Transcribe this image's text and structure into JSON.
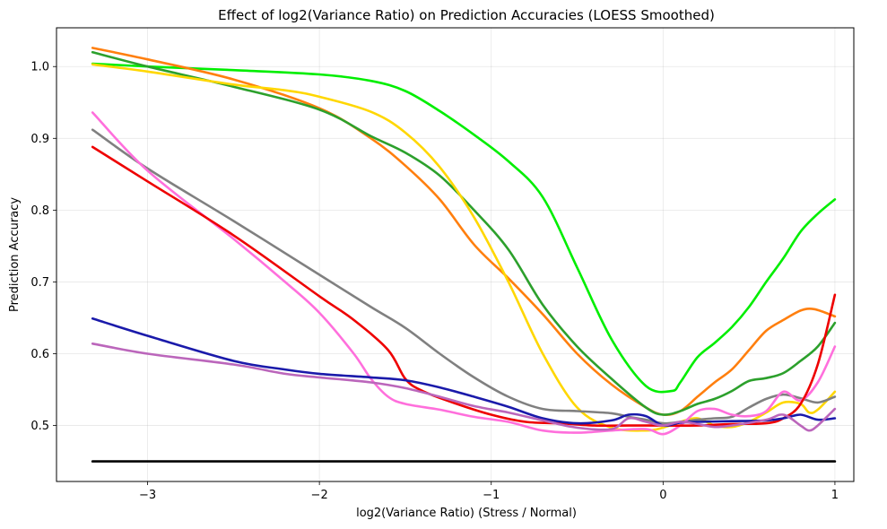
{
  "chart_data": {
    "type": "line",
    "title": "Effect of log2(Variance Ratio) on Prediction Accuracies (LOESS Smoothed)",
    "xlabel": "log2(Variance Ratio) (Stress / Normal)",
    "ylabel": "Prediction Accuracy",
    "xlim": [
      -3.53,
      1.11
    ],
    "ylim": [
      0.422,
      1.054
    ],
    "xticks": [
      -3,
      -2,
      -1,
      0,
      1
    ],
    "xtick_labels": [
      "−3",
      "−2",
      "−1",
      "0",
      "1"
    ],
    "yticks": [
      0.5,
      0.6,
      0.7,
      0.8,
      0.9,
      1.0
    ],
    "ytick_labels": [
      "0.5",
      "0.6",
      "0.7",
      "0.8",
      "0.9",
      "1.0"
    ],
    "grid": true,
    "series": [
      {
        "color": "#00ee00",
        "points": [
          [
            -3.32,
            1.004
          ],
          [
            -3.0,
            1.0
          ],
          [
            -2.5,
            0.995
          ],
          [
            -2.0,
            0.989
          ],
          [
            -1.7,
            0.98
          ],
          [
            -1.5,
            0.966
          ],
          [
            -1.3,
            0.938
          ],
          [
            -1.1,
            0.905
          ],
          [
            -0.9,
            0.868
          ],
          [
            -0.7,
            0.818
          ],
          [
            -0.5,
            0.72
          ],
          [
            -0.3,
            0.62
          ],
          [
            -0.1,
            0.555
          ],
          [
            0.05,
            0.548
          ],
          [
            0.1,
            0.56
          ],
          [
            0.2,
            0.595
          ],
          [
            0.3,
            0.615
          ],
          [
            0.4,
            0.637
          ],
          [
            0.5,
            0.665
          ],
          [
            0.6,
            0.7
          ],
          [
            0.7,
            0.733
          ],
          [
            0.8,
            0.77
          ],
          [
            0.9,
            0.795
          ],
          [
            1.0,
            0.815
          ]
        ]
      },
      {
        "color": "#ff7f0e",
        "points": [
          [
            -3.32,
            1.026
          ],
          [
            -3.0,
            1.01
          ],
          [
            -2.5,
            0.982
          ],
          [
            -2.0,
            0.942
          ],
          [
            -1.7,
            0.9
          ],
          [
            -1.5,
            0.862
          ],
          [
            -1.3,
            0.815
          ],
          [
            -1.1,
            0.752
          ],
          [
            -0.9,
            0.705
          ],
          [
            -0.7,
            0.655
          ],
          [
            -0.5,
            0.6
          ],
          [
            -0.3,
            0.557
          ],
          [
            -0.1,
            0.525
          ],
          [
            0.0,
            0.515
          ],
          [
            0.1,
            0.52
          ],
          [
            0.2,
            0.54
          ],
          [
            0.3,
            0.56
          ],
          [
            0.4,
            0.578
          ],
          [
            0.5,
            0.605
          ],
          [
            0.6,
            0.632
          ],
          [
            0.7,
            0.647
          ],
          [
            0.8,
            0.66
          ],
          [
            0.88,
            0.662
          ],
          [
            1.0,
            0.652
          ]
        ]
      },
      {
        "color": "#2ca02c",
        "points": [
          [
            -3.32,
            1.02
          ],
          [
            -3.0,
            1.0
          ],
          [
            -2.5,
            0.972
          ],
          [
            -2.0,
            0.94
          ],
          [
            -1.7,
            0.903
          ],
          [
            -1.5,
            0.88
          ],
          [
            -1.3,
            0.848
          ],
          [
            -1.1,
            0.8
          ],
          [
            -0.9,
            0.745
          ],
          [
            -0.7,
            0.668
          ],
          [
            -0.5,
            0.61
          ],
          [
            -0.3,
            0.565
          ],
          [
            -0.1,
            0.525
          ],
          [
            0.0,
            0.515
          ],
          [
            0.1,
            0.52
          ],
          [
            0.2,
            0.53
          ],
          [
            0.3,
            0.537
          ],
          [
            0.4,
            0.548
          ],
          [
            0.5,
            0.562
          ],
          [
            0.6,
            0.566
          ],
          [
            0.7,
            0.573
          ],
          [
            0.8,
            0.59
          ],
          [
            0.9,
            0.61
          ],
          [
            1.0,
            0.643
          ]
        ]
      },
      {
        "color": "#ffd700",
        "points": [
          [
            -3.32,
            1.003
          ],
          [
            -3.0,
            0.993
          ],
          [
            -2.5,
            0.975
          ],
          [
            -2.2,
            0.967
          ],
          [
            -2.0,
            0.958
          ],
          [
            -1.7,
            0.937
          ],
          [
            -1.5,
            0.908
          ],
          [
            -1.3,
            0.86
          ],
          [
            -1.1,
            0.79
          ],
          [
            -0.9,
            0.7
          ],
          [
            -0.7,
            0.6
          ],
          [
            -0.5,
            0.525
          ],
          [
            -0.3,
            0.497
          ],
          [
            -0.1,
            0.493
          ],
          [
            0.0,
            0.497
          ],
          [
            0.1,
            0.505
          ],
          [
            0.2,
            0.51
          ],
          [
            0.3,
            0.5
          ],
          [
            0.4,
            0.498
          ],
          [
            0.5,
            0.505
          ],
          [
            0.6,
            0.518
          ],
          [
            0.7,
            0.532
          ],
          [
            0.8,
            0.53
          ],
          [
            0.85,
            0.518
          ],
          [
            0.9,
            0.522
          ],
          [
            1.0,
            0.547
          ]
        ]
      },
      {
        "color": "#808080",
        "points": [
          [
            -3.32,
            0.912
          ],
          [
            -3.0,
            0.858
          ],
          [
            -2.5,
            0.785
          ],
          [
            -2.0,
            0.71
          ],
          [
            -1.7,
            0.665
          ],
          [
            -1.5,
            0.636
          ],
          [
            -1.3,
            0.6
          ],
          [
            -1.1,
            0.567
          ],
          [
            -0.9,
            0.54
          ],
          [
            -0.7,
            0.523
          ],
          [
            -0.5,
            0.52
          ],
          [
            -0.3,
            0.517
          ],
          [
            -0.2,
            0.512
          ],
          [
            -0.1,
            0.508
          ],
          [
            0.0,
            0.503
          ],
          [
            0.1,
            0.505
          ],
          [
            0.2,
            0.508
          ],
          [
            0.3,
            0.51
          ],
          [
            0.4,
            0.512
          ],
          [
            0.5,
            0.525
          ],
          [
            0.6,
            0.537
          ],
          [
            0.7,
            0.543
          ],
          [
            0.8,
            0.538
          ],
          [
            0.9,
            0.532
          ],
          [
            1.0,
            0.54
          ]
        ]
      },
      {
        "color": "#ff6fdc",
        "points": [
          [
            -3.32,
            0.936
          ],
          [
            -3.0,
            0.855
          ],
          [
            -2.5,
            0.76
          ],
          [
            -2.2,
            0.7
          ],
          [
            -2.0,
            0.657
          ],
          [
            -1.8,
            0.6
          ],
          [
            -1.7,
            0.565
          ],
          [
            -1.6,
            0.54
          ],
          [
            -1.5,
            0.53
          ],
          [
            -1.3,
            0.522
          ],
          [
            -1.1,
            0.512
          ],
          [
            -0.9,
            0.505
          ],
          [
            -0.7,
            0.493
          ],
          [
            -0.5,
            0.49
          ],
          [
            -0.3,
            0.493
          ],
          [
            -0.1,
            0.495
          ],
          [
            0.0,
            0.488
          ],
          [
            0.1,
            0.5
          ],
          [
            0.2,
            0.52
          ],
          [
            0.3,
            0.523
          ],
          [
            0.4,
            0.515
          ],
          [
            0.5,
            0.513
          ],
          [
            0.6,
            0.52
          ],
          [
            0.7,
            0.547
          ],
          [
            0.8,
            0.535
          ],
          [
            0.9,
            0.56
          ],
          [
            1.0,
            0.61
          ]
        ]
      },
      {
        "color": "#ee0000",
        "points": [
          [
            -3.32,
            0.888
          ],
          [
            -3.0,
            0.84
          ],
          [
            -2.5,
            0.765
          ],
          [
            -2.0,
            0.68
          ],
          [
            -1.8,
            0.647
          ],
          [
            -1.6,
            0.605
          ],
          [
            -1.5,
            0.565
          ],
          [
            -1.4,
            0.548
          ],
          [
            -1.2,
            0.53
          ],
          [
            -1.0,
            0.515
          ],
          [
            -0.8,
            0.505
          ],
          [
            -0.6,
            0.503
          ],
          [
            -0.4,
            0.5
          ],
          [
            -0.2,
            0.5
          ],
          [
            0.0,
            0.5
          ],
          [
            0.2,
            0.5
          ],
          [
            0.4,
            0.502
          ],
          [
            0.6,
            0.503
          ],
          [
            0.7,
            0.51
          ],
          [
            0.8,
            0.53
          ],
          [
            0.9,
            0.585
          ],
          [
            1.0,
            0.682
          ]
        ]
      },
      {
        "color": "#1a1aaa",
        "points": [
          [
            -3.32,
            0.649
          ],
          [
            -3.0,
            0.625
          ],
          [
            -2.5,
            0.59
          ],
          [
            -2.2,
            0.578
          ],
          [
            -2.0,
            0.572
          ],
          [
            -1.7,
            0.567
          ],
          [
            -1.5,
            0.563
          ],
          [
            -1.3,
            0.553
          ],
          [
            -1.1,
            0.54
          ],
          [
            -0.9,
            0.526
          ],
          [
            -0.7,
            0.51
          ],
          [
            -0.5,
            0.503
          ],
          [
            -0.3,
            0.507
          ],
          [
            -0.2,
            0.515
          ],
          [
            -0.1,
            0.513
          ],
          [
            0.0,
            0.5
          ],
          [
            0.1,
            0.504
          ],
          [
            0.2,
            0.505
          ],
          [
            0.4,
            0.506
          ],
          [
            0.6,
            0.507
          ],
          [
            0.7,
            0.51
          ],
          [
            0.8,
            0.515
          ],
          [
            0.9,
            0.508
          ],
          [
            1.0,
            0.51
          ]
        ]
      },
      {
        "color": "#bb66bb",
        "points": [
          [
            -3.32,
            0.614
          ],
          [
            -3.0,
            0.6
          ],
          [
            -2.5,
            0.585
          ],
          [
            -2.2,
            0.572
          ],
          [
            -2.0,
            0.567
          ],
          [
            -1.7,
            0.56
          ],
          [
            -1.5,
            0.552
          ],
          [
            -1.3,
            0.54
          ],
          [
            -1.1,
            0.527
          ],
          [
            -0.9,
            0.518
          ],
          [
            -0.7,
            0.507
          ],
          [
            -0.5,
            0.497
          ],
          [
            -0.3,
            0.495
          ],
          [
            -0.2,
            0.51
          ],
          [
            -0.1,
            0.505
          ],
          [
            0.0,
            0.5
          ],
          [
            0.1,
            0.505
          ],
          [
            0.2,
            0.502
          ],
          [
            0.3,
            0.498
          ],
          [
            0.4,
            0.5
          ],
          [
            0.6,
            0.508
          ],
          [
            0.7,
            0.515
          ],
          [
            0.8,
            0.5
          ],
          [
            0.85,
            0.493
          ],
          [
            0.9,
            0.5
          ],
          [
            1.0,
            0.523
          ]
        ]
      },
      {
        "color": "#000000",
        "points": [
          [
            -3.32,
            0.45
          ],
          [
            1.0,
            0.45
          ]
        ]
      }
    ]
  }
}
